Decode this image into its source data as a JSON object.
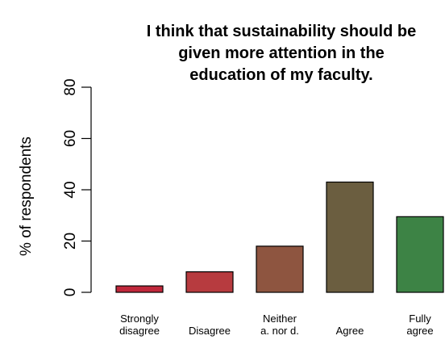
{
  "chart_data": {
    "type": "bar",
    "title_lines": [
      "I think that sustainability should be",
      "given more attention in the",
      "education of my faculty."
    ],
    "ylabel": "% of respondents",
    "xlabel": "",
    "ylim": [
      0,
      80
    ],
    "yticks": [
      "0",
      "20",
      "40",
      "60",
      "80"
    ],
    "categories": [
      [
        "Strongly",
        "disagree"
      ],
      [
        "Disagree"
      ],
      [
        "Neither",
        "a. nor d."
      ],
      [
        "Agree"
      ],
      [
        "Fully",
        "agree"
      ]
    ],
    "values": [
      2.5,
      8,
      18,
      43,
      29.5
    ],
    "colors": [
      "#c0283b",
      "#b73b3f",
      "#8e5540",
      "#6b5e40",
      "#3d8345"
    ],
    "grid": false,
    "legend": "none"
  }
}
